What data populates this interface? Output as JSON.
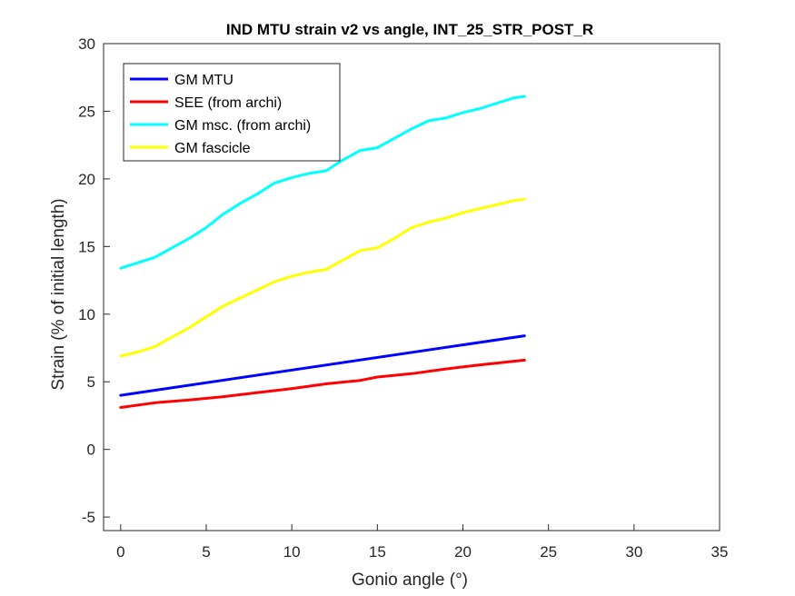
{
  "chart_data": {
    "type": "line",
    "title": "IND MTU strain v2 vs angle, INT_25_STR_POST_R",
    "xlabel": "Gonio angle (°)",
    "ylabel": "Strain (% of initial length)",
    "xlim": [
      -1,
      35
    ],
    "ylim": [
      -6,
      30
    ],
    "xticks": [
      "0",
      "5",
      "10",
      "15",
      "20",
      "25",
      "30",
      "35"
    ],
    "yticks": [
      "-5",
      "0",
      "5",
      "10",
      "15",
      "20",
      "25",
      "30"
    ],
    "grid": false,
    "legend_position": "top-left",
    "series": [
      {
        "name": "GM MTU",
        "color": "#0000ff",
        "x": [
          0,
          23.6
        ],
        "y": [
          4.0,
          8.4
        ]
      },
      {
        "name": "SEE (from archi)",
        "color": "#ff0000",
        "x": [
          0,
          2,
          4,
          6,
          8,
          10,
          12,
          14,
          15,
          17,
          19,
          21,
          23.6
        ],
        "y": [
          3.1,
          3.45,
          3.65,
          3.9,
          4.2,
          4.5,
          4.85,
          5.1,
          5.35,
          5.6,
          5.95,
          6.25,
          6.6
        ]
      },
      {
        "name": "GM msc. (from archi)",
        "color": "#00ffff",
        "x": [
          0,
          1,
          2,
          3,
          4,
          5,
          6,
          7,
          8,
          9,
          10,
          11,
          12,
          13,
          14,
          15,
          16,
          17,
          18,
          19,
          20,
          21,
          22,
          23,
          23.6
        ],
        "y": [
          13.4,
          13.8,
          14.2,
          14.9,
          15.6,
          16.4,
          17.4,
          18.2,
          18.9,
          19.7,
          20.1,
          20.4,
          20.6,
          21.4,
          22.1,
          22.3,
          23.0,
          23.7,
          24.3,
          24.5,
          24.9,
          25.2,
          25.6,
          26.0,
          26.1
        ]
      },
      {
        "name": "GM fascicle",
        "color": "#ffff00",
        "x": [
          0,
          1,
          2,
          3,
          4,
          5,
          6,
          7,
          8,
          9,
          10,
          11,
          12,
          13,
          14,
          15,
          16,
          17,
          18,
          19,
          20,
          21,
          22,
          23,
          23.6
        ],
        "y": [
          6.9,
          7.2,
          7.6,
          8.3,
          9.0,
          9.8,
          10.6,
          11.2,
          11.8,
          12.4,
          12.8,
          13.1,
          13.3,
          14.0,
          14.7,
          14.9,
          15.6,
          16.4,
          16.8,
          17.1,
          17.5,
          17.8,
          18.1,
          18.4,
          18.5
        ]
      }
    ]
  }
}
